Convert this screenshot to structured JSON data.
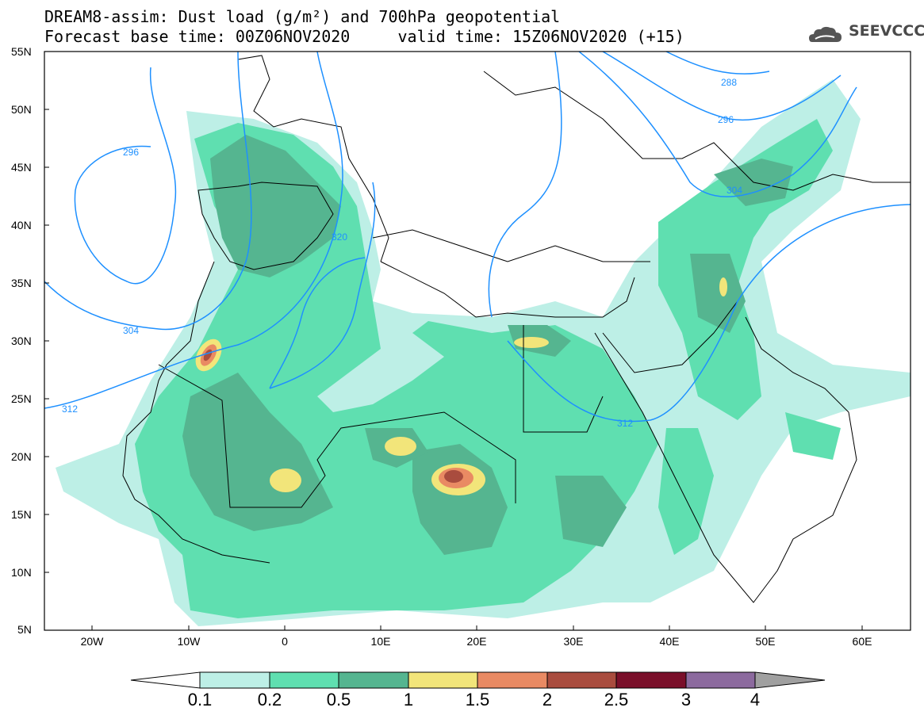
{
  "title": {
    "line1": "DREAM8-assim: Dust load (g/m²) and 700hPa geopotential",
    "line2": "Forecast base time: 00Z06NOV2020     valid time: 15Z06NOV2020 (+15)"
  },
  "logo": {
    "text": "SEEVCCC",
    "icon": "cloud-icon"
  },
  "map": {
    "lat_labels": [
      "55N",
      "50N",
      "45N",
      "40N",
      "35N",
      "30N",
      "25N",
      "20N",
      "15N",
      "10N",
      "5N"
    ],
    "lon_labels": [
      "20W",
      "10W",
      "0",
      "10E",
      "20E",
      "30E",
      "40E",
      "50E",
      "60E"
    ],
    "contour_labels": [
      "288",
      "296",
      "296",
      "304",
      "304",
      "312",
      "312",
      "320"
    ]
  },
  "colorbar": {
    "labels": [
      "0.1",
      "0.2",
      "0.5",
      "1",
      "1.5",
      "2",
      "2.5",
      "3",
      "4"
    ],
    "colors": [
      "#ffffff",
      "#bdefe6",
      "#5fdfb0",
      "#55b590",
      "#f2e57a",
      "#e98a63",
      "#a94c3e",
      "#7a0f2a",
      "#8c6a9e",
      "#a0a0a0"
    ]
  }
}
